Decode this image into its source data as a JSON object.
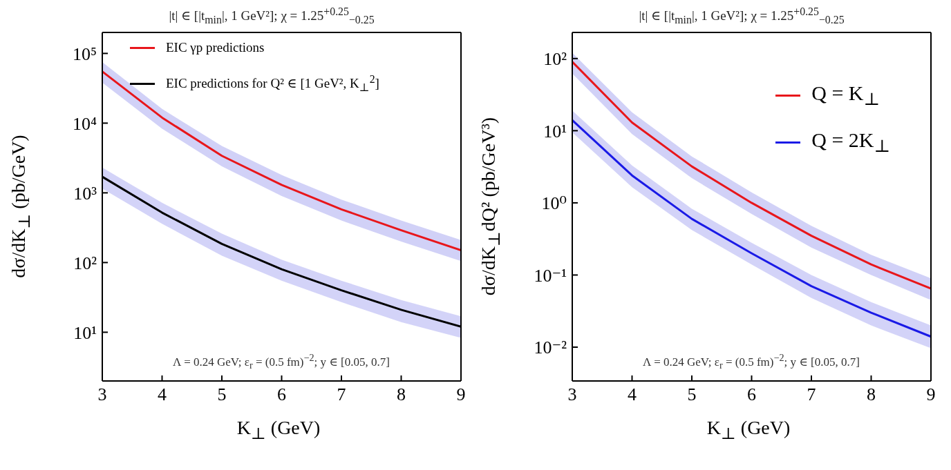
{
  "chart_data": [
    {
      "type": "line",
      "title": "|t| ∈ [|t$_{min}$|, 1 GeV²];  χ = 1.25$^{+0.25}$$_{−0.25}$",
      "xlabel": "K$_{⊥}$ (GeV)",
      "ylabel": "dσ/dK$_{⊥}$ (pb/GeV)",
      "x": [
        3,
        4,
        5,
        6,
        7,
        8,
        9
      ],
      "series": [
        {
          "name": "EIC γp predictions",
          "color": "#e8161b",
          "values": [
            55000,
            12000,
            3400,
            1300,
            580,
            290,
            150
          ],
          "lower": [
            38000,
            8300,
            2400,
            900,
            400,
            200,
            105
          ],
          "upper": [
            75000,
            16000,
            4700,
            1800,
            800,
            400,
            210
          ]
        },
        {
          "name": "EIC predictions for Q² ∈ [1 GeV², K$_{⊥}$$^{2}$]",
          "color": "#000000",
          "values": [
            1700,
            520,
            185,
            80,
            40,
            21,
            12
          ],
          "lower": [
            1150,
            360,
            125,
            55,
            27,
            14,
            8.3
          ],
          "upper": [
            2300,
            720,
            260,
            110,
            55,
            29,
            17
          ]
        }
      ],
      "xlim": [
        3,
        9
      ],
      "xticks": [
        3,
        4,
        5,
        6,
        7,
        8,
        9
      ],
      "ylim": [
        2,
        200000
      ],
      "yticks": [
        {
          "value": 10,
          "label": "10¹"
        },
        {
          "value": 100,
          "label": "10²"
        },
        {
          "value": 1000,
          "label": "10³"
        },
        {
          "value": 10000,
          "label": "10⁴"
        },
        {
          "value": 100000,
          "label": "10⁵"
        }
      ],
      "log": "y",
      "legend": "top left",
      "marker": "none",
      "line_style": "solid",
      "annotations": [
        "Λ = 0.24 GeV;  ε$_{r}$ = (0.5 fm)$^{−2}$;  y ∈ [0.05, 0.7]"
      ]
    },
    {
      "type": "line",
      "title": "|t| ∈ [|t$_{min}$|, 1 GeV²];  χ = 1.25$^{+0.25}$$_{−0.25}$",
      "xlabel": "K$_{⊥}$ (GeV)",
      "ylabel": "dσ/dK$_{⊥}$dQ² (pb/GeV³)",
      "x": [
        3,
        4,
        5,
        6,
        7,
        8,
        9
      ],
      "series": [
        {
          "name": "Q = K$_{⊥}$",
          "color": "#e8161b",
          "values": [
            90,
            13,
            3.2,
            1.0,
            0.35,
            0.14,
            0.065
          ],
          "lower": [
            62,
            9,
            2.2,
            0.7,
            0.24,
            0.1,
            0.045
          ],
          "upper": [
            120,
            18,
            4.4,
            1.4,
            0.48,
            0.19,
            0.09
          ]
        },
        {
          "name": "Q = 2K$_{⊥}$",
          "color": "#1a1ae6",
          "values": [
            14,
            2.4,
            0.6,
            0.2,
            0.07,
            0.03,
            0.014
          ],
          "lower": [
            9.5,
            1.65,
            0.42,
            0.14,
            0.048,
            0.02,
            0.0097
          ],
          "upper": [
            19,
            3.3,
            0.83,
            0.28,
            0.1,
            0.042,
            0.02
          ]
        }
      ],
      "xlim": [
        3,
        9
      ],
      "xticks": [
        3,
        4,
        5,
        6,
        7,
        8,
        9
      ],
      "ylim": [
        0.0034,
        230
      ],
      "yticks": [
        {
          "value": 0.01,
          "label": "10⁻²"
        },
        {
          "value": 0.1,
          "label": "10⁻¹"
        },
        {
          "value": 1,
          "label": "10⁰"
        },
        {
          "value": 10,
          "label": "10¹"
        },
        {
          "value": 100,
          "label": "10²"
        }
      ],
      "log": "y",
      "legend": "top right",
      "marker": "none",
      "line_style": "solid",
      "annotations": [
        "Λ = 0.24 GeV;  ε$_{r}$ = (0.5 fm)$^{−2}$;  y ∈ [0.05, 0.7]"
      ]
    }
  ]
}
